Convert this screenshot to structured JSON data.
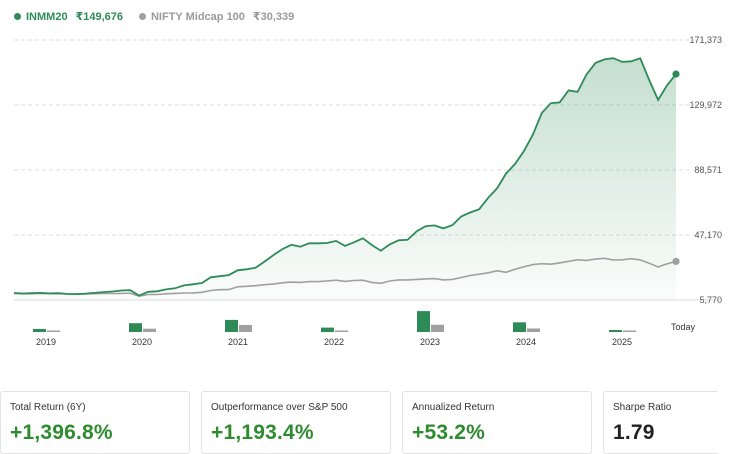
{
  "legend": {
    "primary_name": "INMM20",
    "primary_value": "₹149,676",
    "benchmark_name": "NIFTY Midcap 100",
    "benchmark_value": "₹30,339"
  },
  "colors": {
    "primary": "#2e8b57",
    "benchmark": "#a0a0a0",
    "positive": "#2e8b2e"
  },
  "chart_data": {
    "type": "area",
    "y_ticks": [
      "171,373",
      "129,972",
      "88,571",
      "47,170",
      "5,770"
    ],
    "ylim": [
      5770,
      171373
    ],
    "x_tick_labels": [
      "2019",
      "2020",
      "2021",
      "2022",
      "2023",
      "2024",
      "2025",
      "Today"
    ],
    "grid": true,
    "series": [
      {
        "name": "INMM20",
        "values": [
          10200,
          9900,
          10100,
          10300,
          10000,
          10100,
          9600,
          9500,
          9800,
          10300,
          10800,
          11200,
          11800,
          12000,
          8600,
          11000,
          11300,
          12500,
          13200,
          15100,
          15800,
          16600,
          20200,
          20900,
          21600,
          24700,
          25300,
          26300,
          30200,
          34400,
          38200,
          40900,
          39700,
          41900,
          41900,
          42100,
          43400,
          40200,
          42500,
          45100,
          40800,
          37200,
          41200,
          43800,
          44100,
          49500,
          52800,
          53300,
          51400,
          53500,
          59000,
          61500,
          63600,
          70800,
          76900,
          86300,
          92400,
          100600,
          111100,
          124900,
          131100,
          131600,
          139300,
          138300,
          149400,
          156800,
          159000,
          159800,
          157400,
          157800,
          159700,
          145900,
          133200,
          142500,
          149676
        ],
        "markers": [
          0,
          0,
          0,
          0,
          0,
          0,
          0,
          0,
          0,
          0,
          0,
          0,
          0,
          0,
          0,
          0,
          0,
          0,
          0,
          0,
          0,
          0,
          0,
          0,
          0,
          0,
          0,
          0,
          0,
          0,
          0,
          0,
          0,
          0,
          0,
          0,
          0,
          0,
          0,
          0,
          0,
          0,
          0,
          0,
          0,
          0,
          0,
          0,
          0,
          0,
          0,
          0,
          0,
          0,
          0,
          0,
          0,
          0,
          0,
          0,
          0,
          0,
          0,
          0,
          0,
          0,
          0,
          0,
          0,
          0,
          0,
          0,
          0,
          0,
          1
        ]
      },
      {
        "name": "NIFTY Midcap 100",
        "values": [
          10000,
          9700,
          9800,
          9900,
          9800,
          9800,
          9600,
          9500,
          9700,
          9800,
          9900,
          9900,
          10000,
          10100,
          8200,
          9300,
          9300,
          9700,
          10000,
          10200,
          10300,
          10700,
          11800,
          12300,
          12400,
          14200,
          14500,
          14900,
          15500,
          15900,
          16700,
          17200,
          17000,
          17500,
          17500,
          17900,
          18400,
          17600,
          18200,
          18400,
          17000,
          16400,
          17900,
          18600,
          18600,
          18900,
          19200,
          19400,
          18600,
          18900,
          20100,
          21400,
          22200,
          23100,
          24400,
          23400,
          25300,
          26900,
          28300,
          28900,
          28600,
          29400,
          30400,
          31400,
          31000,
          31800,
          32300,
          31300,
          31400,
          32100,
          31300,
          29200,
          26800,
          28800,
          30339
        ]
      }
    ]
  },
  "stats": [
    {
      "label": "Total Return (6Y)",
      "value": "+1,396.8%",
      "tone": "positive"
    },
    {
      "label": "Outperformance over S&P 500",
      "value": "+1,193.4%",
      "tone": "positive"
    },
    {
      "label": "Annualized Return",
      "value": "+53.2%",
      "tone": "positive"
    },
    {
      "label": "Sharpe Ratio",
      "value": "1.79",
      "tone": "neutral"
    }
  ],
  "yearly_bars": [
    {
      "year": "2019",
      "primary": 0.14,
      "benchmark": 0.04
    },
    {
      "year": "2020",
      "primary": 0.4,
      "benchmark": 0.15
    },
    {
      "year": "2021",
      "primary": 0.55,
      "benchmark": 0.32
    },
    {
      "year": "2022",
      "primary": 0.2,
      "benchmark": 0.04
    },
    {
      "year": "2023",
      "primary": 0.95,
      "benchmark": 0.33
    },
    {
      "year": "2024",
      "primary": 0.44,
      "benchmark": 0.16
    },
    {
      "year": "2025",
      "primary": 0.04,
      "benchmark": 0.03
    }
  ]
}
